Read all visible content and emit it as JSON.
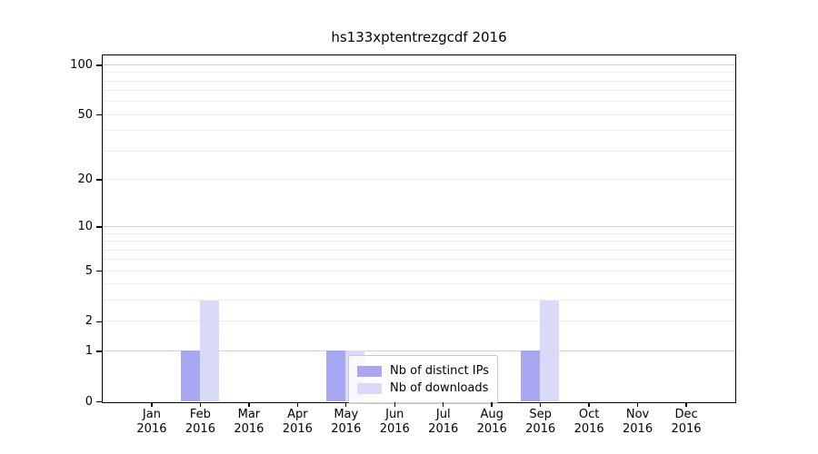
{
  "title": "hs133xptentrezgcdf 2016",
  "chart_data": {
    "type": "bar",
    "title": "hs133xptentrezgcdf 2016",
    "x_months": [
      "Jan",
      "Feb",
      "Mar",
      "Apr",
      "May",
      "Jun",
      "Jul",
      "Aug",
      "Sep",
      "Oct",
      "Nov",
      "Dec"
    ],
    "x_year": "2016",
    "categories": [
      "Jan 2016",
      "Feb 2016",
      "Mar 2016",
      "Apr 2016",
      "May 2016",
      "Jun 2016",
      "Jul 2016",
      "Aug 2016",
      "Sep 2016",
      "Oct 2016",
      "Nov 2016",
      "Dec 2016"
    ],
    "series": [
      {
        "name": "Nb of distinct IPs",
        "color": "#a7a7f2",
        "values": [
          0,
          1,
          0,
          0,
          1,
          0,
          0,
          0,
          1,
          0,
          0,
          0
        ]
      },
      {
        "name": "Nb of downloads",
        "color": "#d9d9f8",
        "values": [
          0,
          3,
          0,
          0,
          1,
          0,
          0,
          0,
          3,
          0,
          0,
          0
        ]
      }
    ],
    "y_scale": "log1p",
    "y_axis_max": 114,
    "y_tick_values": [
      100,
      50,
      20,
      10,
      5,
      2,
      1,
      0
    ],
    "grid_major_values": [
      1,
      10,
      100
    ],
    "grid_minor_values": [
      2,
      3,
      4,
      5,
      6,
      7,
      8,
      9,
      20,
      30,
      40,
      50,
      60,
      70,
      80,
      90
    ],
    "legend_position": "lower-center",
    "colors": {
      "grid_major": "#cfcfcf",
      "grid_minor": "#ededed",
      "axis": "#000000",
      "legend_border": "#c8c8c8"
    }
  }
}
